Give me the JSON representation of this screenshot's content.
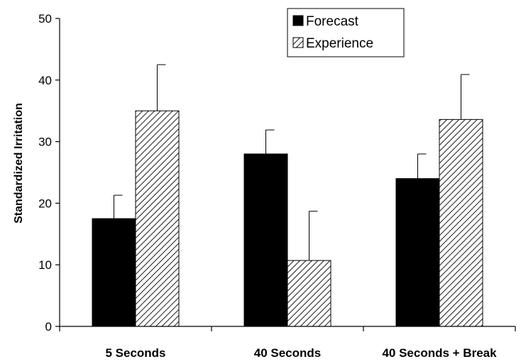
{
  "chart_data": {
    "type": "bar",
    "title": "",
    "xlabel": "",
    "ylabel": "Standardized Irritation",
    "ylim": [
      0,
      50
    ],
    "yticks": [
      0,
      10,
      20,
      30,
      40,
      50
    ],
    "categories": [
      "5 Seconds",
      "40 Seconds",
      "40 Seconds + Break"
    ],
    "series": [
      {
        "name": "Forecast",
        "values": [
          17.5,
          28,
          24
        ],
        "error": [
          3.8,
          3.9,
          4.0
        ],
        "fill": "solid",
        "color": "#000000"
      },
      {
        "name": "Experience",
        "values": [
          35,
          10.7,
          33.6
        ],
        "error": [
          7.5,
          8.0,
          7.3
        ],
        "fill": "hatched",
        "color": "#ffffff"
      }
    ],
    "legend": {
      "position": "top-right"
    },
    "grid": false
  }
}
